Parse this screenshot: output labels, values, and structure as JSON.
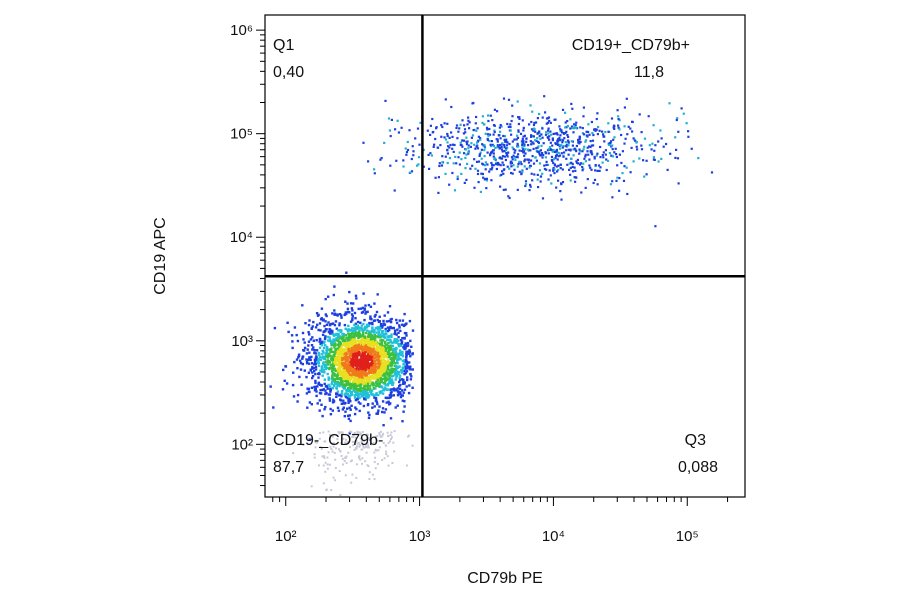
{
  "chart_data": {
    "type": "flow-dotplot",
    "x_label": "CD79b PE",
    "y_label": "CD19 APC",
    "log_x": true,
    "log_y": true,
    "xlim": [
      70,
      270000
    ],
    "ylim": [
      31,
      1400000
    ],
    "xticks": [
      {
        "value": 100,
        "label": "10²"
      },
      {
        "value": 1000,
        "label": "10³"
      },
      {
        "value": 10000,
        "label": "10⁴"
      },
      {
        "value": 100000,
        "label": "10⁵"
      }
    ],
    "yticks": [
      {
        "value": 100,
        "label": "10²"
      },
      {
        "value": 1000,
        "label": "10³"
      },
      {
        "value": 10000,
        "label": "10⁴"
      },
      {
        "value": 100000,
        "label": "10⁵"
      },
      {
        "value": 1000000,
        "label": "10⁶"
      }
    ],
    "gate_x": 1050,
    "gate_y": 4200,
    "quadrants": [
      {
        "name": "Q1",
        "percent": "0,40"
      },
      {
        "name": "CD19+_CD79b+",
        "percent": "11,8"
      },
      {
        "name": "CD19-_CD79b-",
        "percent": "87,7"
      },
      {
        "name": "Q3",
        "percent": "0,088"
      }
    ]
  }
}
